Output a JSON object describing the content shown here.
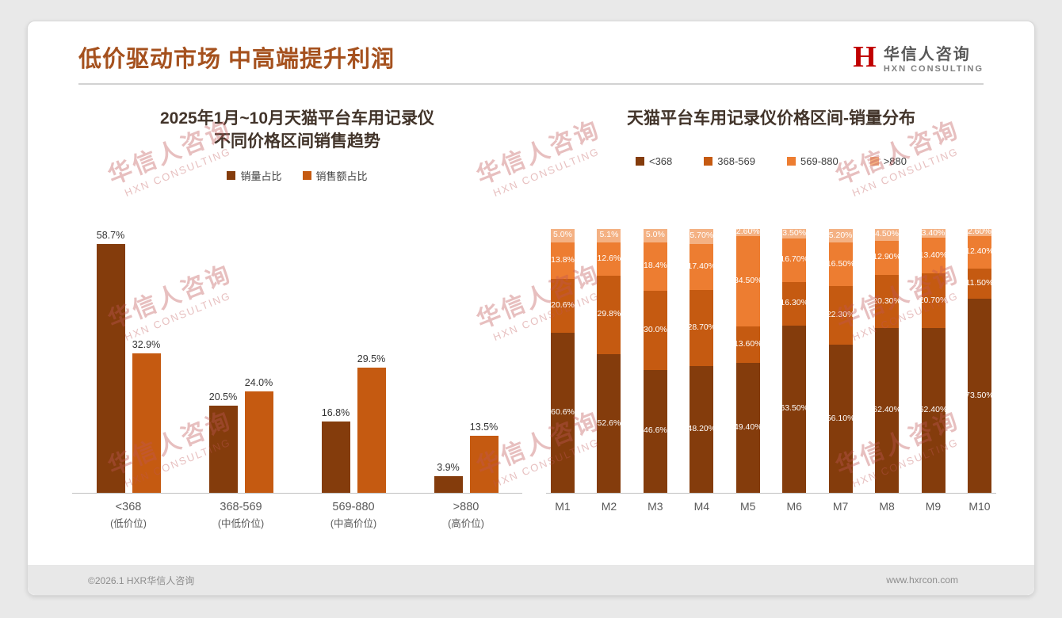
{
  "slide": {
    "title": "低价驱动市场 中高端提升利润",
    "footer_left": "©2026.1 HXR华信人咨询",
    "footer_right": "www.hxrcon.com"
  },
  "logo": {
    "mark": "H",
    "name_cn": "华信人咨询",
    "name_en": "HXN CONSULTING"
  },
  "watermark": {
    "line1": "华信人咨询",
    "line2": "HXN CONSULTING"
  },
  "colors": {
    "title_accent": "#A5511E",
    "series_dark_brown": "#843C0C",
    "series_orange": "#C55A11",
    "series_light_orange": "#ED7D31",
    "series_peach": "#F4B183",
    "logo_red": "#C00000"
  },
  "chart_data": [
    {
      "type": "bar",
      "title_line1": "2025年1月~10月天猫平台车用记录仪",
      "title_line2": "不同价格区间销售趋势",
      "categories": [
        "<368",
        "368-569",
        "569-880",
        ">880"
      ],
      "category_notes": [
        "(低价位)",
        "(中低价位)",
        "(中高价位)",
        "(高价位)"
      ],
      "series": [
        {
          "name": "销量占比",
          "color": "#843C0C",
          "values": [
            58.7,
            20.5,
            16.8,
            3.9
          ]
        },
        {
          "name": "销售额占比",
          "color": "#C55A11",
          "values": [
            32.9,
            24.0,
            29.5,
            13.5
          ]
        }
      ],
      "value_suffix": "%",
      "ylim": [
        0,
        63.5
      ],
      "grid": false,
      "legend_position": "top"
    },
    {
      "type": "bar",
      "variant": "stacked-100",
      "title": "天猫平台车用记录仪价格区间-销量分布",
      "categories": [
        "M1",
        "M2",
        "M3",
        "M4",
        "M5",
        "M6",
        "M7",
        "M8",
        "M9",
        "M10"
      ],
      "series": [
        {
          "name": "<368",
          "color": "#843C0C",
          "values": [
            60.6,
            52.6,
            46.6,
            48.2,
            49.4,
            63.5,
            56.1,
            62.4,
            62.4,
            73.5
          ],
          "labels": [
            "60.6%",
            "52.6%",
            "46.6%",
            "48.20%",
            "49.40%",
            "63.50%",
            "56.10%",
            "62.40%",
            "62.40%",
            "73.50%"
          ]
        },
        {
          "name": "368-569",
          "color": "#C55A11",
          "values": [
            20.6,
            29.8,
            30.0,
            28.7,
            13.6,
            16.3,
            22.3,
            20.3,
            20.7,
            11.5
          ],
          "labels": [
            "20.6%",
            "29.8%",
            "30.0%",
            "28.70%",
            "13.60%",
            "16.30%",
            "22.30%",
            "20.30%",
            "20.70%",
            "11.50%"
          ]
        },
        {
          "name": "569-880",
          "color": "#ED7D31",
          "values": [
            13.8,
            12.6,
            18.4,
            17.4,
            34.5,
            16.7,
            16.5,
            12.9,
            13.4,
            12.4
          ],
          "labels": [
            "13.8%",
            "12.6%",
            "18.4%",
            "17.40%",
            "34.50%",
            "16.70%",
            "16.50%",
            "12.90%",
            "13.40%",
            "12.40%"
          ]
        },
        {
          "name": ">880",
          "color": "#F4B183",
          "values": [
            5.0,
            5.1,
            5.0,
            5.7,
            2.6,
            3.5,
            5.2,
            4.5,
            3.4,
            2.6
          ],
          "labels": [
            "5.0%",
            "5.1%",
            "5.0%",
            "5.70%",
            "2.60%",
            "3.50%",
            "5.20%",
            "4.50%",
            "3.40%",
            "2.60%"
          ]
        }
      ],
      "ylim": [
        0,
        100
      ],
      "grid": false,
      "legend_position": "top"
    }
  ]
}
